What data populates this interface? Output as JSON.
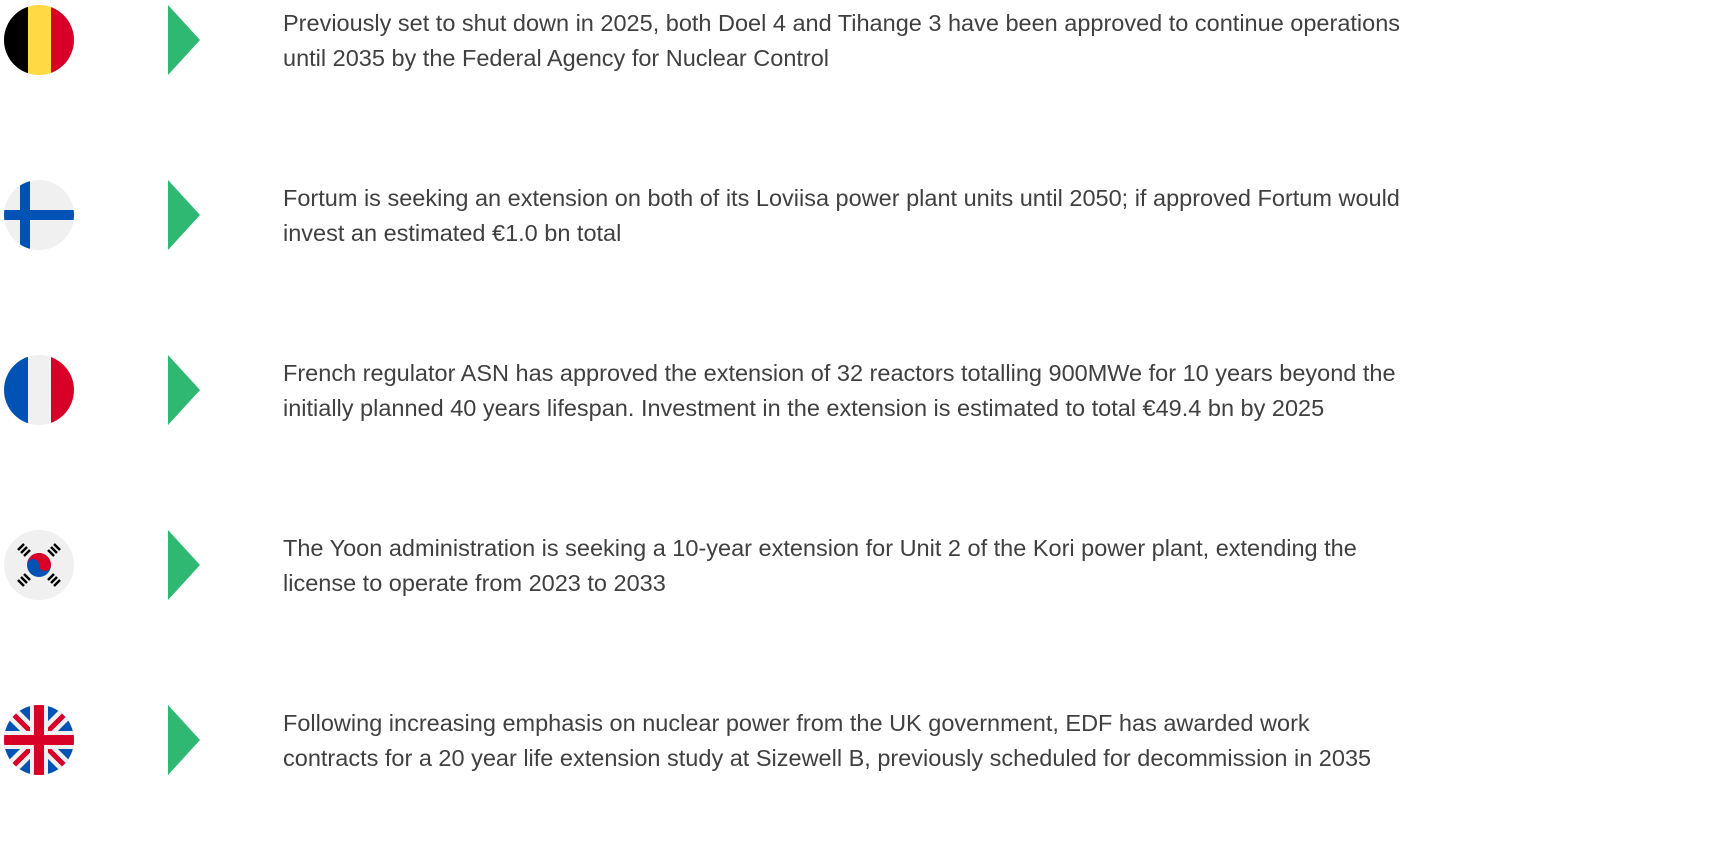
{
  "items": [
    {
      "lines": [
        "Previously set to shut down in 2025, both Doel 4 and Tihange 3 have been approved to continue operations",
        "until 2035 by the Federal Agency for Nuclear Control"
      ]
    },
    {
      "lines": [
        "Fortum is seeking an extension on both of its Loviisa power plant units until 2050; if approved Fortum would",
        "invest an estimated €1.0 bn total"
      ]
    },
    {
      "lines": [
        "French regulator ASN has approved the extension of 32 reactors totalling 900MWe for 10 years beyond the",
        "initially planned 40 years lifespan. Investment in the extension is estimated to total €49.4 bn by 2025"
      ]
    },
    {
      "lines": [
        "The Yoon administration is seeking a 10-year extension for Unit 2 of the Kori power plant, extending the",
        "license to operate from 2023 to 2033"
      ]
    },
    {
      "lines": [
        "Following increasing emphasis on nuclear power from the UK government, EDF has awarded work",
        "contracts for a 20 year life extension study at Sizewell B, previously scheduled for decommission in 2035"
      ]
    }
  ]
}
